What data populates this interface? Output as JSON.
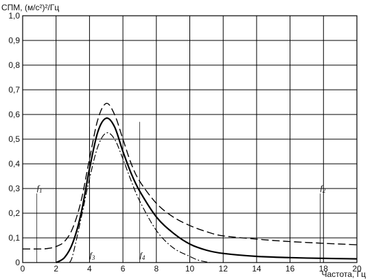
{
  "chart_data": {
    "type": "line",
    "ylabel": "СПМ, (м/с²)²/Гц",
    "xlabel": "Частота, Гц",
    "xlim": [
      0,
      20
    ],
    "ylim": [
      0,
      1.0
    ],
    "x_ticks": [
      "0",
      "2",
      "4",
      "6",
      "8",
      "10",
      "12",
      "14",
      "16",
      "18",
      "20"
    ],
    "y_ticks": [
      "0",
      "0,1",
      "0,2",
      "0,3",
      "0,4",
      "0,5",
      "0,6",
      "0,7",
      "0,8",
      "0,9",
      "1,0"
    ],
    "grid": true,
    "series": [
      {
        "style": "dashed",
        "x": [
          0,
          1,
          1.5,
          2,
          2.5,
          3,
          3.5,
          4,
          4.5,
          5,
          5.5,
          6,
          6.5,
          7,
          8,
          9,
          10,
          11,
          12,
          14,
          16,
          18,
          20
        ],
        "values": [
          0.055,
          0.055,
          0.057,
          0.065,
          0.085,
          0.14,
          0.25,
          0.42,
          0.58,
          0.645,
          0.6,
          0.5,
          0.4,
          0.33,
          0.24,
          0.185,
          0.15,
          0.125,
          0.108,
          0.095,
          0.085,
          0.078,
          0.072
        ]
      },
      {
        "style": "solid",
        "x": [
          2,
          2.5,
          3,
          3.5,
          4,
          4.5,
          5,
          5.5,
          6,
          6.5,
          7,
          8,
          9,
          10,
          11,
          12,
          14,
          16,
          18,
          20
        ],
        "values": [
          0.0,
          0.02,
          0.08,
          0.2,
          0.38,
          0.53,
          0.585,
          0.55,
          0.45,
          0.36,
          0.29,
          0.185,
          0.12,
          0.075,
          0.05,
          0.037,
          0.025,
          0.02,
          0.017,
          0.015
        ]
      },
      {
        "style": "dash-dot",
        "x": [
          2.8,
          3,
          3.5,
          4,
          4.5,
          5,
          5.5,
          6,
          6.5,
          7,
          8,
          9,
          10,
          10.5,
          11.2
        ],
        "values": [
          0.0,
          0.03,
          0.18,
          0.34,
          0.47,
          0.525,
          0.5,
          0.42,
          0.33,
          0.25,
          0.13,
          0.06,
          0.025,
          0.01,
          0.0
        ]
      }
    ],
    "markers": [
      {
        "label": "f",
        "sub": "1",
        "x": 0.85,
        "y_top": 0.28,
        "label_pos": "top"
      },
      {
        "label": "f",
        "sub": "2",
        "x": 17.8,
        "y_top": 0.28,
        "label_pos": "top"
      },
      {
        "label": "f",
        "sub": "3",
        "x": 4.0,
        "y_top": 0.55,
        "label_pos": "bottom"
      },
      {
        "label": "f",
        "sub": "4",
        "x": 7.0,
        "y_top": 0.57,
        "label_pos": "bottom"
      }
    ]
  }
}
